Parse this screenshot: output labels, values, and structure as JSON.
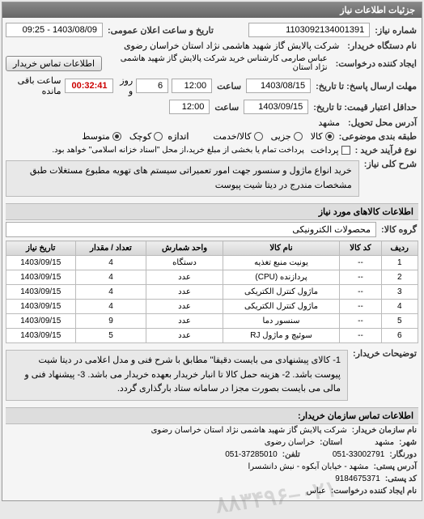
{
  "header": {
    "title": "جزئیات اطلاعات نیاز"
  },
  "request": {
    "number_label": "شماره نیاز:",
    "number": "1103092134001391",
    "announce_label": "تاریخ و ساعت اعلان عمومی:",
    "announce": "1403/08/09 - 09:25",
    "org_label": "نام دستگاه خریدار:",
    "org": "شرکت پالایش گاز شهید هاشمی نژاد   استان خراسان رضوی",
    "creator_label": "ایجاد کننده درخواست:",
    "creator": "عباس صارمی کارشناس خرید  شرکت پالایش گاز شهید هاشمی نژاد   استان",
    "contact_btn": "اطلاعات تماس خریدار",
    "deadline_reply_label": "مهلت ارسال پاسخ: تا تاریخ:",
    "deadline_reply_date": "1403/08/15",
    "time_label": "ساعت",
    "deadline_reply_time": "12:00",
    "days_remaining": "6",
    "days_word": "روز و",
    "countdown": "00:32:41",
    "remaining_text": "ساعت باقی مانده",
    "price_deadline_label": "حداقل اعتبار قیمت: تا تاریخ:",
    "price_deadline_date": "1403/09/15",
    "price_deadline_time": "12:00",
    "delivery_addr_label": "آدرس محل تحویل:",
    "delivery_addr": "مشهد",
    "packaging_label": "طبقه بندی موضوعی:",
    "pkg_opts": [
      "کالا",
      "جزیی",
      "کالا/خدمت"
    ],
    "pkg_checked": 0,
    "size_label": "اندازه",
    "size_opts": [
      "کوچک",
      "متوسط"
    ],
    "size_checked": 1,
    "process_label": "نوع فرآیند خرید :",
    "process_opts": [
      "پرداخت"
    ],
    "process_desc": "پرداخت تمام یا بخشی از مبلغ خرید،از محل \"اسناد خزانه اسلامی\" خواهد بود.",
    "main_desc_label": "شرح کلی نیاز:",
    "main_desc": "خرید انواع ماژول و سنسور جهت امور تعمیراتی سیستم های تهویه مطبوع مستغلات طبق مشخصات مندرج در دیتا شیت پیوست"
  },
  "goods": {
    "title": "اطلاعات کالاهای مورد نیاز",
    "group_label": "گروه کالا:",
    "group": "محصولات الکترونیکی",
    "columns": [
      "ردیف",
      "کد کالا",
      "نام کالا",
      "واحد شمارش",
      "تعداد / مقدار",
      "تاریخ نیاز"
    ],
    "rows": [
      [
        "1",
        "--",
        "یونیت منبع تغذیه",
        "دستگاه",
        "4",
        "1403/09/15"
      ],
      [
        "2",
        "--",
        "پردازنده (CPU)",
        "عدد",
        "4",
        "1403/09/15"
      ],
      [
        "3",
        "--",
        "ماژول کنترل الکتریکی",
        "عدد",
        "4",
        "1403/09/15"
      ],
      [
        "4",
        "--",
        "ماژول کنترل الکتریکی",
        "عدد",
        "4",
        "1403/09/15"
      ],
      [
        "5",
        "--",
        "سنسور دما",
        "عدد",
        "9",
        "1403/09/15"
      ],
      [
        "6",
        "--",
        "سوئیچ و ماژول RJ",
        "عدد",
        "5",
        "1403/09/15"
      ]
    ]
  },
  "notes": {
    "label": "توضیحات خریدار:",
    "text": "1- کالای پیشنهادی می بایست دقیقا\" مطابق با شرح فنی و مدل اعلامی در دیتا شیت پیوست باشد. 2- هزینه حمل کالا تا انبار خریدار بعهده خریدار می باشد. 3- پیشنهاد فنی و مالی می بایست بصورت مجزا در سامانه ستاد بارگذاری گردد."
  },
  "contact": {
    "title": "اطلاعات تماس سازمان خریدار:",
    "org_label": "نام سازمان خریدار:",
    "org": "شرکت پالایش گاز شهید هاشمی نژاد استان خراسان رضوی",
    "city_label": "شهر:",
    "city": "مشهد",
    "province_label": "استان:",
    "province": "خراسان رضوی",
    "fax_label": "دورنگار:",
    "fax": "051-33002791",
    "phone_label": "تلفن:",
    "phone": "051-37285010",
    "addr_label": "آدرس پستی:",
    "addr": "مشهد - خیابان آبکوه - نبش دانشسرا",
    "postal_label": "کد پستی:",
    "postal": "9184675371",
    "creator2_label": "نام ایجاد کننده درخواست:",
    "creator2": "عباس"
  },
  "watermark": "۰۲۱–۸۸۳۴۹۶",
  "colors": {
    "header_bg": "#777777",
    "header_fg": "#ffffff",
    "panel_bg": "#f5f5f5",
    "border": "#bbbbbb",
    "countdown": "#cc0000"
  }
}
